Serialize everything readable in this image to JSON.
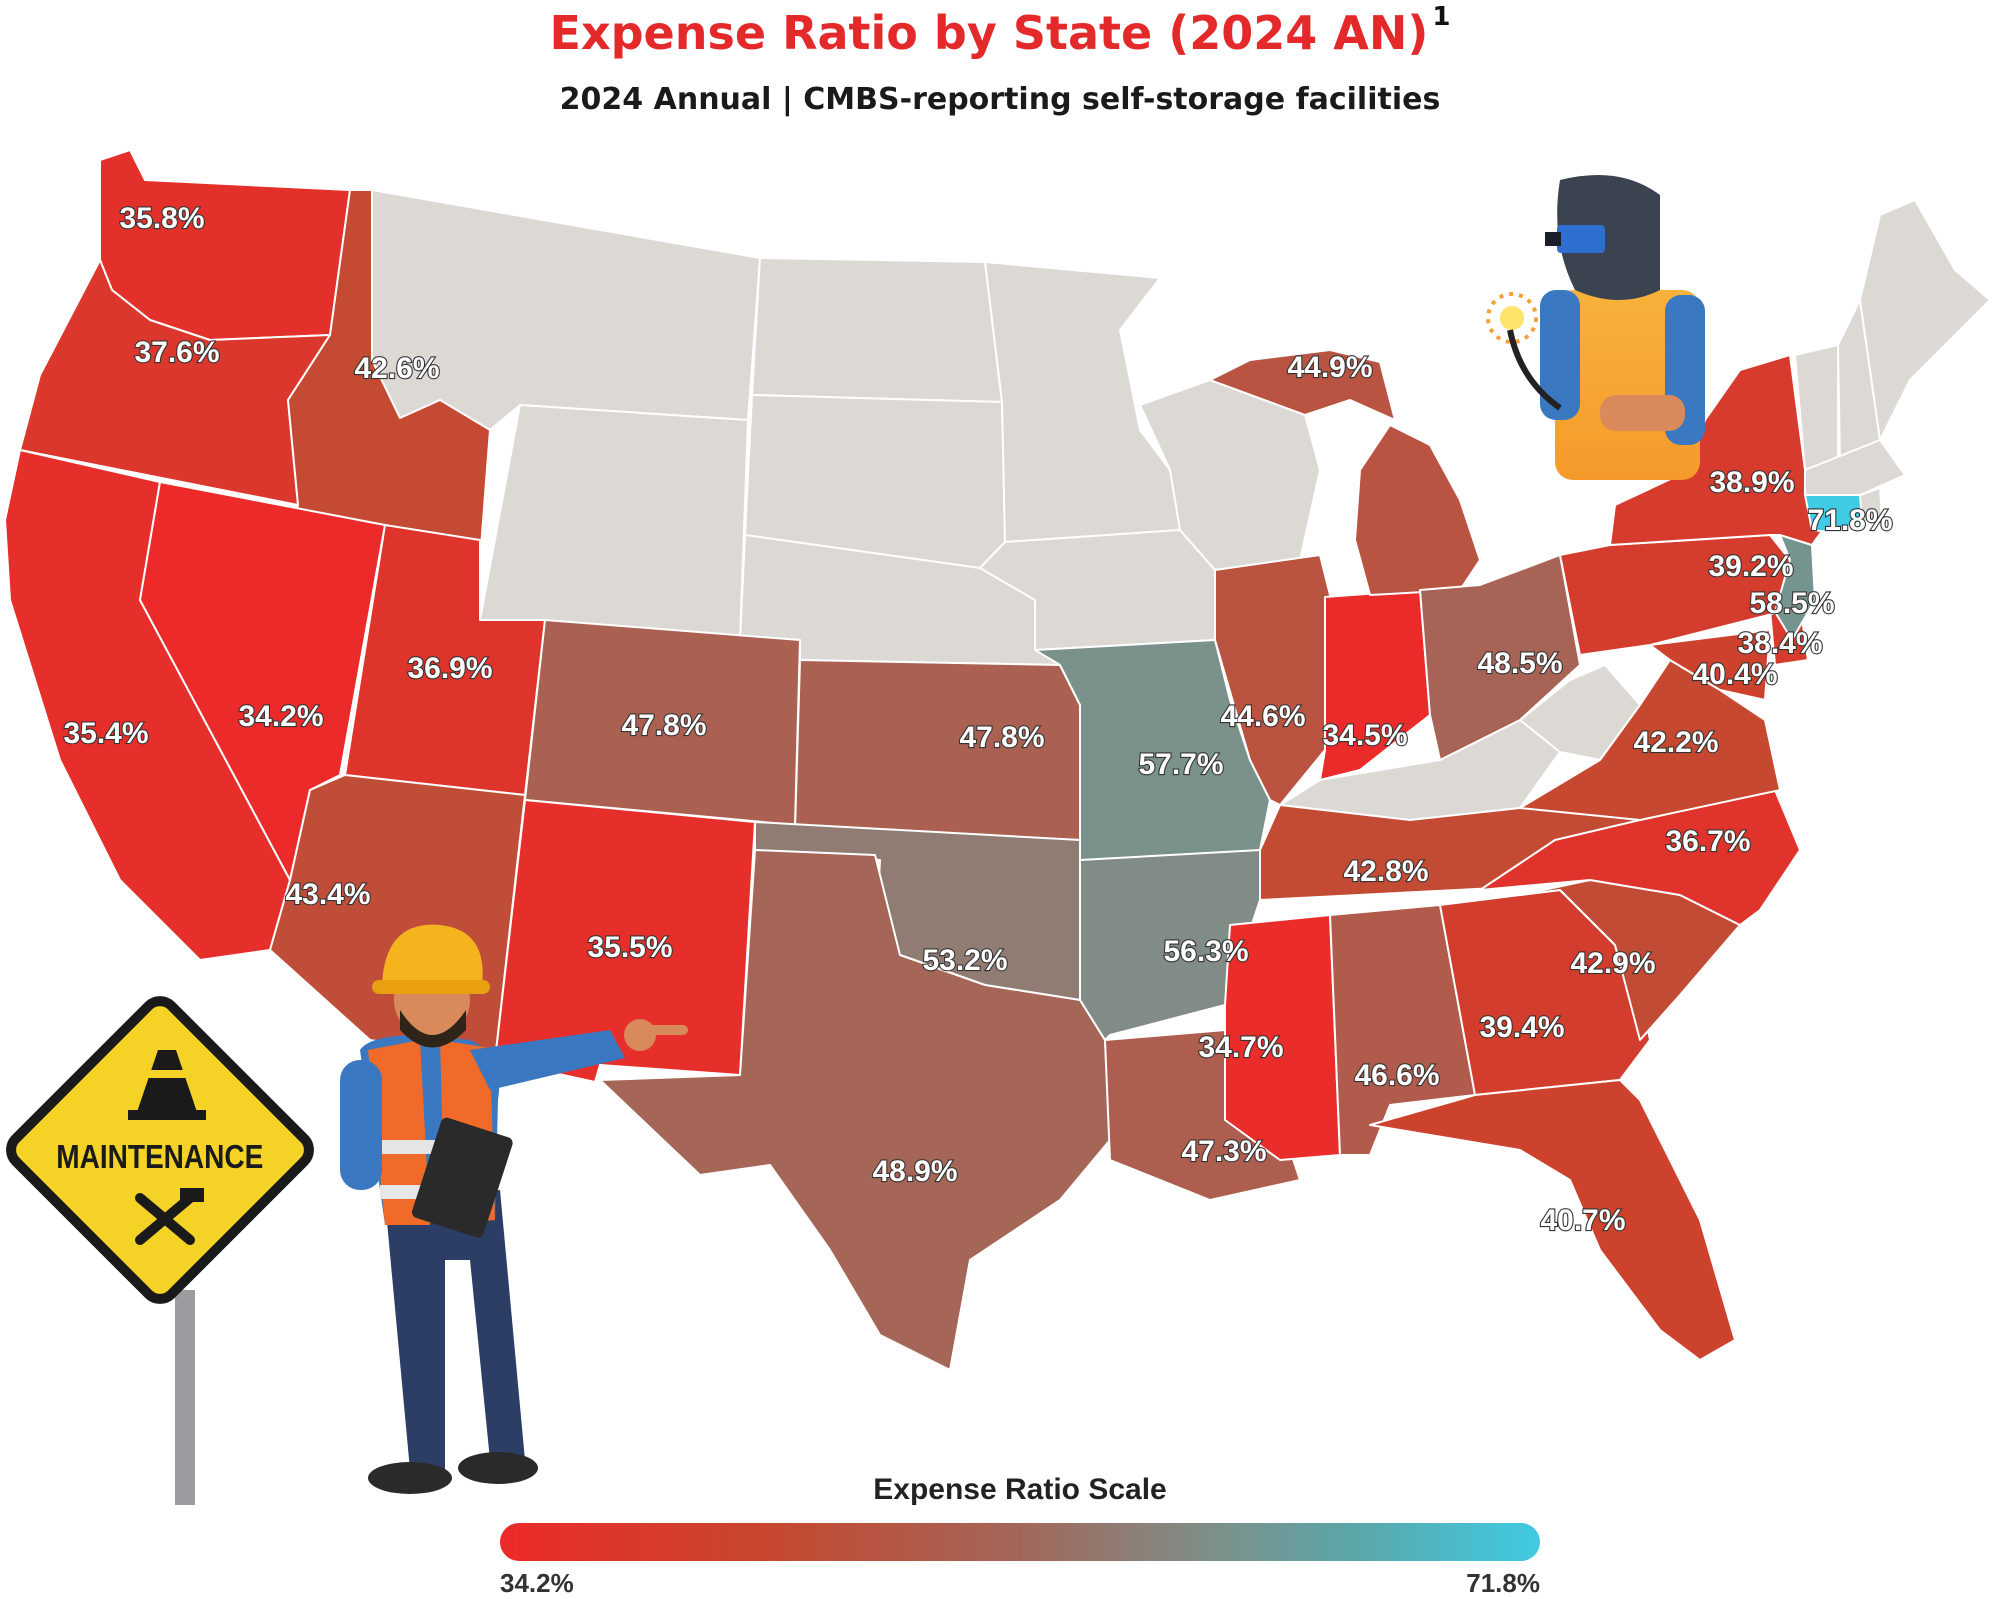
{
  "header": {
    "title": "Expense Ratio by State (2024 AN)",
    "footnote_marker": "1",
    "subtitle": "2024 Annual | CMBS-reporting self-storage facilities"
  },
  "scale": {
    "title": "Expense Ratio Scale",
    "min_label": "34.2%",
    "max_label": "71.8%",
    "min": 34.2,
    "max": 71.8,
    "colors": [
      "#ec2a2a",
      "#c8462e",
      "#a3675a",
      "#7e8e88",
      "#5ba6a8",
      "#3fcbe3"
    ]
  },
  "illustrations": {
    "sign_text": "MAINTENANCE",
    "icons": [
      "worker-illustration",
      "welder-illustration",
      "maintenance-sign",
      "traffic-cone-icon",
      "wrench-hammer-icon"
    ]
  },
  "colors": {
    "no_data": "#dcd8d4",
    "state_border": "#ffffff"
  },
  "states": [
    {
      "code": "WA",
      "label": "35.8%"
    },
    {
      "code": "OR",
      "label": "37.6%"
    },
    {
      "code": "ID",
      "label": "42.6%"
    },
    {
      "code": "CA",
      "label": "35.4%"
    },
    {
      "code": "NV",
      "label": "34.2%"
    },
    {
      "code": "UT",
      "label": "36.9%"
    },
    {
      "code": "AZ",
      "label": "43.4%"
    },
    {
      "code": "CO",
      "label": "47.8%"
    },
    {
      "code": "NM",
      "label": "35.5%"
    },
    {
      "code": "KS",
      "label": "47.8%"
    },
    {
      "code": "OK",
      "label": "53.2%"
    },
    {
      "code": "TX",
      "label": "48.9%"
    },
    {
      "code": "MO",
      "label": "57.7%"
    },
    {
      "code": "AR",
      "label": "56.3%"
    },
    {
      "code": "LA",
      "label": "47.3%"
    },
    {
      "code": "MS",
      "label": "34.7%"
    },
    {
      "code": "AL",
      "label": "46.6%"
    },
    {
      "code": "IL",
      "label": "44.6%"
    },
    {
      "code": "IN",
      "label": "34.5%"
    },
    {
      "code": "MI",
      "label": "44.9%"
    },
    {
      "code": "OH",
      "label": "48.5%"
    },
    {
      "code": "TN",
      "label": "42.8%"
    },
    {
      "code": "GA",
      "label": "39.4%"
    },
    {
      "code": "FL",
      "label": "40.7%"
    },
    {
      "code": "SC",
      "label": "42.9%"
    },
    {
      "code": "NC",
      "label": "36.7%"
    },
    {
      "code": "VA",
      "label": "42.2%"
    },
    {
      "code": "MD",
      "label": "40.4%"
    },
    {
      "code": "DE",
      "label": "38.4%"
    },
    {
      "code": "NJ",
      "label": "58.5%"
    },
    {
      "code": "PA",
      "label": "39.2%"
    },
    {
      "code": "NY",
      "label": "38.9%"
    },
    {
      "code": "CT",
      "label": "71.8%"
    }
  ]
}
